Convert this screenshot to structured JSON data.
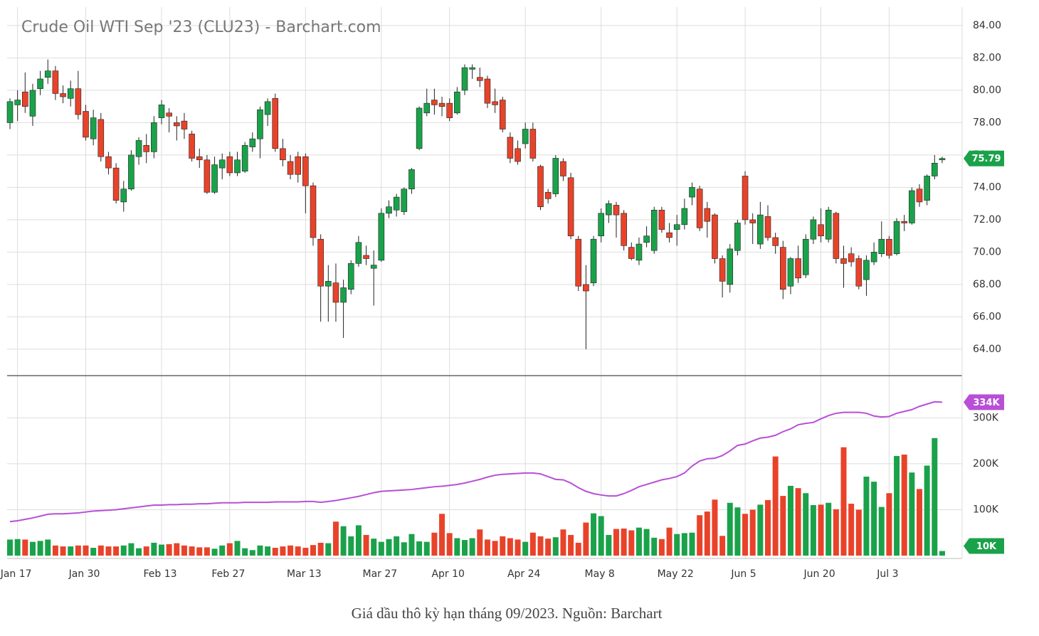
{
  "chart_data": {
    "type": "candlestick",
    "title": "Crude Oil WTI Sep '23 (CLU23) - Barchart.com",
    "caption": "Giá dầu thô kỳ hạn tháng 09/2023. Nguồn: Barchart",
    "up_color": "#1aa24a",
    "down_color": "#e8432a",
    "grid": true,
    "categories": [
      null,
      "Jan 17",
      null,
      null,
      null,
      null,
      null,
      null,
      null,
      null,
      "Jan 30",
      null,
      null,
      null,
      null,
      null,
      null,
      null,
      null,
      null,
      "Feb 13",
      null,
      null,
      null,
      null,
      null,
      null,
      null,
      null,
      "Feb 27",
      null,
      null,
      null,
      null,
      null,
      null,
      null,
      null,
      null,
      "Mar 13",
      null,
      null,
      null,
      null,
      null,
      null,
      null,
      null,
      null,
      "Mar 27",
      null,
      null,
      null,
      null,
      null,
      null,
      null,
      null,
      "Apr 10",
      null,
      null,
      null,
      null,
      null,
      null,
      null,
      null,
      null,
      "Apr 24",
      null,
      null,
      null,
      null,
      null,
      null,
      null,
      null,
      null,
      "May 8",
      null,
      null,
      null,
      null,
      null,
      null,
      null,
      null,
      null,
      "May 22",
      null,
      null,
      null,
      null,
      null,
      null,
      null,
      null,
      "Jun 5",
      null,
      null,
      null,
      null,
      null,
      null,
      null,
      null,
      null,
      "Jun 20",
      null,
      null,
      null,
      null,
      null,
      null,
      null,
      null,
      "Jul 3",
      null,
      null,
      null,
      null,
      null,
      null,
      null
    ],
    "open": [
      78.0,
      79.1,
      79.9,
      78.4,
      80.1,
      80.8,
      81.2,
      79.8,
      79.5,
      80.1,
      78.7,
      77.0,
      78.2,
      75.9,
      75.2,
      73.1,
      73.9,
      75.9,
      76.6,
      76.2,
      78.3,
      78.6,
      78.0,
      78.1,
      77.3,
      75.9,
      75.7,
      73.7,
      75.2,
      75.9,
      74.9,
      75.0,
      76.5,
      77.0,
      78.5,
      79.5,
      76.4,
      75.6,
      75.9,
      75.9,
      74.1,
      70.8,
      67.9,
      68.1,
      66.9,
      67.7,
      69.3,
      69.8,
      69.0,
      69.5,
      72.4,
      72.6,
      72.5,
      73.9,
      76.4,
      78.6,
      79.4,
      79.2,
      79.2,
      78.6,
      80.0,
      81.3,
      80.8,
      80.7,
      79.3,
      79.4,
      77.1,
      76.4,
      76.7,
      77.6,
      75.3,
      73.7,
      73.6,
      75.6,
      74.6,
      70.8,
      68.0,
      68.1,
      71.0,
      72.3,
      72.9,
      72.4,
      70.3,
      69.5,
      70.6,
      70.1,
      72.6,
      71.2,
      71.4,
      71.7,
      73.4,
      73.9,
      72.7,
      72.3,
      69.6,
      68.0,
      70.1,
      74.7,
      72.0,
      70.5,
      72.2,
      70.9,
      70.3,
      67.9,
      69.6,
      68.6,
      70.8,
      71.7,
      70.8,
      72.4,
      69.6,
      69.9,
      69.6,
      68.3,
      69.4,
      69.9,
      70.8,
      69.9,
      71.9,
      71.8,
      73.9,
      73.2,
      74.7,
      75.7
    ],
    "high": [
      79.5,
      80.0,
      81.1,
      80.4,
      81.2,
      81.9,
      81.5,
      80.3,
      80.6,
      81.2,
      79.1,
      78.8,
      78.6,
      76.2,
      75.5,
      74.4,
      76.3,
      77.1,
      77.3,
      78.4,
      79.4,
      78.9,
      78.4,
      78.6,
      77.5,
      76.4,
      76.0,
      75.9,
      76.1,
      76.2,
      76.2,
      76.8,
      77.4,
      79.0,
      79.5,
      79.8,
      77.0,
      76.0,
      76.2,
      76.1,
      74.3,
      71.1,
      69.2,
      69.3,
      68.3,
      69.5,
      71.0,
      70.4,
      70.1,
      72.7,
      73.2,
      73.6,
      74.0,
      75.2,
      79.0,
      80.1,
      80.1,
      79.6,
      79.5,
      80.2,
      81.6,
      81.6,
      81.4,
      80.9,
      80.1,
      79.6,
      77.4,
      76.9,
      78.0,
      78.0,
      75.4,
      73.9,
      76.0,
      75.8,
      74.9,
      71.0,
      69.2,
      71.0,
      72.7,
      73.2,
      73.1,
      72.6,
      70.6,
      70.9,
      71.6,
      72.8,
      72.8,
      71.8,
      72.3,
      73.3,
      74.3,
      74.1,
      73.1,
      72.4,
      69.8,
      70.5,
      72.0,
      75.0,
      72.4,
      73.1,
      72.9,
      71.2,
      70.7,
      69.7,
      70.4,
      71.1,
      72.2,
      72.7,
      72.8,
      72.5,
      70.4,
      70.3,
      69.8,
      69.8,
      70.6,
      71.9,
      71.0,
      72.1,
      72.3,
      74.0,
      74.2,
      74.8,
      76.0,
      75.9
    ],
    "low": [
      77.6,
      78.1,
      78.6,
      77.8,
      79.7,
      80.4,
      79.4,
      79.2,
      79.0,
      78.2,
      76.9,
      76.6,
      75.6,
      74.8,
      73.0,
      72.5,
      73.8,
      75.4,
      75.5,
      75.8,
      77.9,
      77.4,
      76.9,
      77.0,
      75.6,
      75.2,
      73.6,
      73.6,
      74.5,
      74.7,
      74.7,
      74.9,
      76.2,
      75.8,
      77.8,
      76.2,
      75.3,
      74.5,
      74.3,
      72.4,
      70.4,
      65.7,
      65.7,
      65.7,
      64.7,
      67.4,
      69.1,
      69.2,
      66.7,
      69.4,
      72.1,
      72.2,
      72.3,
      73.6,
      76.3,
      78.4,
      78.5,
      78.4,
      78.1,
      78.5,
      79.7,
      80.7,
      80.2,
      78.9,
      78.6,
      77.4,
      75.5,
      75.4,
      76.4,
      75.6,
      72.6,
      73.0,
      73.4,
      74.4,
      70.8,
      67.6,
      64.0,
      67.9,
      70.6,
      71.8,
      70.9,
      70.1,
      69.5,
      69.2,
      70.3,
      69.9,
      71.2,
      70.6,
      70.4,
      71.4,
      72.9,
      71.3,
      70.9,
      69.3,
      67.2,
      67.5,
      69.8,
      71.7,
      70.5,
      70.2,
      70.7,
      69.9,
      67.1,
      67.4,
      68.1,
      68.4,
      70.5,
      70.6,
      70.6,
      69.3,
      67.8,
      69.1,
      67.7,
      67.3,
      69.2,
      69.7,
      69.6,
      69.8,
      71.3,
      71.7,
      72.8,
      72.9,
      74.5,
      75.5
    ],
    "close": [
      79.3,
      79.4,
      79.0,
      80.0,
      80.7,
      81.2,
      79.8,
      79.6,
      80.1,
      78.5,
      77.1,
      78.3,
      75.9,
      75.2,
      73.2,
      73.9,
      76.0,
      76.9,
      76.2,
      78.0,
      79.1,
      78.4,
      77.8,
      77.6,
      75.8,
      75.7,
      73.7,
      75.4,
      75.7,
      74.9,
      75.7,
      76.6,
      77.0,
      78.8,
      79.3,
      76.4,
      75.7,
      74.8,
      74.8,
      74.1,
      70.9,
      67.9,
      68.2,
      66.9,
      67.8,
      69.3,
      70.6,
      69.6,
      69.2,
      72.4,
      72.8,
      73.4,
      73.9,
      75.1,
      78.9,
      79.2,
      79.1,
      79.0,
      78.3,
      79.9,
      81.4,
      81.4,
      80.6,
      79.2,
      79.1,
      77.6,
      75.8,
      75.6,
      77.6,
      75.8,
      72.8,
      73.3,
      75.8,
      74.7,
      71.0,
      67.9,
      67.6,
      70.8,
      72.4,
      73.0,
      72.3,
      70.4,
      69.6,
      70.5,
      71.0,
      72.6,
      71.4,
      70.9,
      71.7,
      72.7,
      74.0,
      71.5,
      71.9,
      69.6,
      68.2,
      70.2,
      71.8,
      72.0,
      71.8,
      72.3,
      70.9,
      70.4,
      67.7,
      69.6,
      68.4,
      70.8,
      72.0,
      71.0,
      72.6,
      69.6,
      69.3,
      69.4,
      67.9,
      69.5,
      70.0,
      70.8,
      69.8,
      71.9,
      71.8,
      73.8,
      73.1,
      74.7,
      75.5,
      75.79
    ],
    "ylim": [
      62.37,
      85.14
    ],
    "yticks": [
      {
        "value": 64,
        "label": "64.00"
      },
      {
        "value": 66,
        "label": "66.00"
      },
      {
        "value": 68,
        "label": "68.00"
      },
      {
        "value": 70,
        "label": "70.00"
      },
      {
        "value": 72,
        "label": "72.00"
      },
      {
        "value": 74,
        "label": "74.00"
      },
      {
        "value": 76,
        "label": "76.00"
      },
      {
        "value": 78,
        "label": "78.00"
      },
      {
        "value": 80,
        "label": "80.00"
      },
      {
        "value": 82,
        "label": "82.00"
      },
      {
        "value": 84,
        "label": "84.00"
      }
    ],
    "volume": {
      "values": [
        35,
        36,
        35,
        30,
        32,
        35,
        22,
        20,
        20,
        22,
        22,
        17,
        22,
        20,
        20,
        22,
        27,
        16,
        20,
        28,
        24,
        25,
        27,
        22,
        20,
        18,
        18,
        15,
        22,
        27,
        32,
        16,
        12,
        22,
        20,
        17,
        20,
        22,
        20,
        17,
        23,
        28,
        27,
        74,
        64,
        42,
        66,
        45,
        37,
        30,
        36,
        42,
        29,
        47,
        31,
        30,
        50,
        91,
        49,
        38,
        34,
        38,
        57,
        35,
        32,
        42,
        38,
        35,
        30,
        50,
        42,
        37,
        40,
        57,
        45,
        28,
        72,
        92,
        86,
        45,
        58,
        59,
        55,
        61,
        58,
        39,
        36,
        61,
        47,
        49,
        50,
        88,
        96,
        122,
        43,
        115,
        105,
        91,
        100,
        111,
        121,
        216,
        130,
        152,
        147,
        136,
        110,
        111,
        115,
        101,
        236,
        113,
        100,
        172,
        161,
        106,
        136,
        217,
        220,
        181,
        145,
        196,
        256,
        10
      ],
      "last_label": "10K",
      "ylim": [
        0,
        392
      ],
      "yticks": [
        {
          "value": 100,
          "label": "100K"
        },
        {
          "value": 200,
          "label": "200K"
        },
        {
          "value": 300,
          "label": "300K"
        }
      ]
    },
    "ma": {
      "color": "#b84fd6",
      "values": [
        74,
        76,
        79,
        82,
        86,
        90,
        91,
        91,
        92,
        93,
        95,
        97,
        98,
        99,
        100,
        102,
        104,
        106,
        108,
        110,
        110,
        111,
        111,
        112,
        112,
        113,
        113,
        114,
        115,
        115,
        115,
        116,
        116,
        116,
        116,
        117,
        117,
        117,
        117,
        118,
        118,
        116,
        118,
        120,
        123,
        126,
        129,
        133,
        137,
        140,
        141,
        142,
        143,
        144,
        146,
        148,
        150,
        151,
        153,
        155,
        158,
        162,
        166,
        171,
        175,
        177,
        178,
        179,
        180,
        180,
        178,
        172,
        166,
        165,
        158,
        148,
        140,
        135,
        132,
        130,
        130,
        135,
        142,
        150,
        155,
        160,
        165,
        168,
        172,
        180,
        195,
        206,
        211,
        212,
        218,
        228,
        240,
        243,
        250,
        256,
        258,
        262,
        270,
        276,
        285,
        288,
        290,
        298,
        305,
        310,
        312,
        312,
        312,
        310,
        304,
        302,
        303,
        310,
        314,
        318,
        325,
        330,
        335,
        334
      ],
      "last_label": "334K"
    }
  }
}
